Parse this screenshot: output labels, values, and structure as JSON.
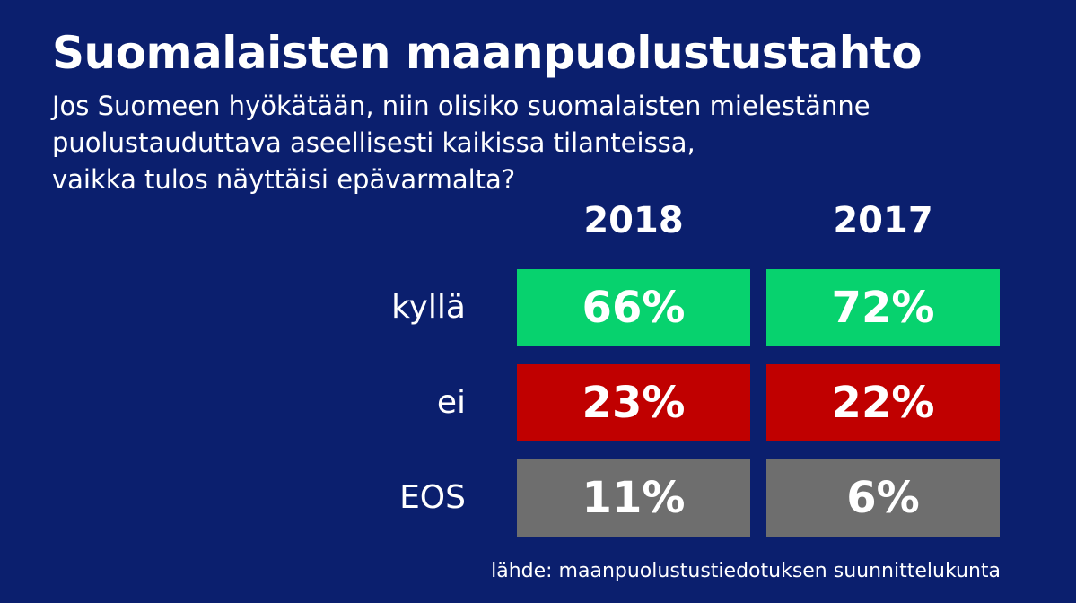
{
  "title": "Suomalaisten maanpuolustustahto",
  "subtitle_lines": [
    "Jos Suomeen hyökätään, niin olisiko suomalaisten mielestänne",
    "puolustauduttava aseellisesti kaikissa tilanteissa,",
    "vaikka tulos näyttäisi epävarmalta?"
  ],
  "source": "lähde: maanpuolustustiedotuksen suunnittelukunta",
  "colors": {
    "background": "#0b1f6e",
    "kylla": "#07d26e",
    "ei": "#c00000",
    "eos": "#6e6e6e"
  },
  "chart_data": {
    "type": "table",
    "title": "Suomalaisten maanpuolustustahto",
    "columns": [
      "2018",
      "2017"
    ],
    "rows": [
      {
        "label": "kyllä",
        "values": [
          "66%",
          "72%"
        ]
      },
      {
        "label": "ei",
        "values": [
          "23%",
          "22%"
        ]
      },
      {
        "label": "EOS",
        "values": [
          "11%",
          "6%"
        ]
      }
    ]
  }
}
